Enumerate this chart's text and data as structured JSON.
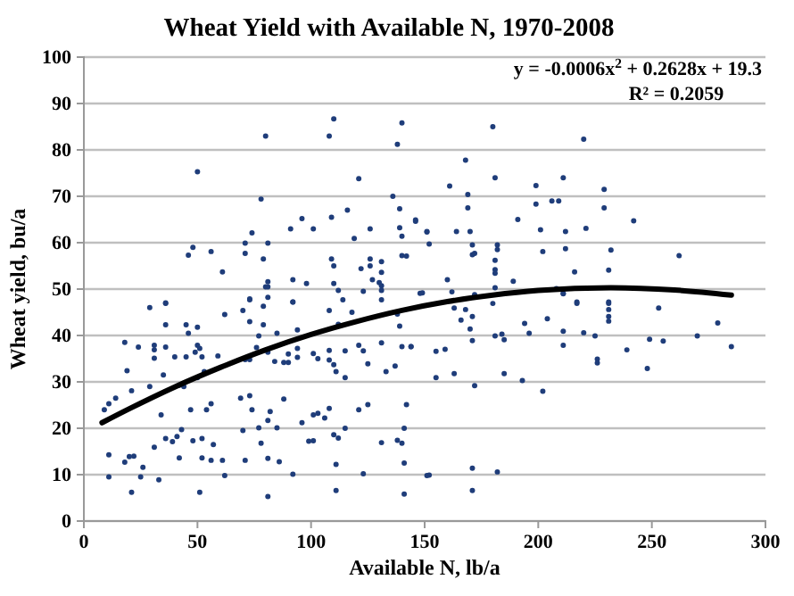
{
  "chart_data": {
    "type": "scatter",
    "title": "Wheat Yield with Available N, 1970-2008",
    "xlabel": "Available N, lb/a",
    "ylabel": "Wheat yield, bu/a",
    "annotations": [
      "y = -0.0006x$^{2}$ + 0.2628x + 19.3",
      "R² = 0.2059"
    ],
    "xlim": [
      0,
      300
    ],
    "xticks": [
      0,
      50,
      100,
      150,
      200,
      250,
      300
    ],
    "ylim": [
      0,
      100
    ],
    "yticks": [
      0,
      10,
      20,
      30,
      40,
      50,
      60,
      70,
      80,
      90,
      100
    ],
    "grid": "y",
    "marker": "circle",
    "series": [
      {
        "color": "#1f3d7a",
        "x": [
          110,
          140,
          80,
          108,
          138,
          50,
          121,
          78,
          136,
          139,
          116,
          96,
          109,
          146,
          74,
          91,
          101,
          126,
          139,
          151,
          140,
          119,
          48,
          71,
          81,
          46,
          56,
          71,
          140,
          142,
          79,
          109,
          126,
          110,
          126,
          131,
          122,
          61,
          131,
          92,
          127,
          81,
          110,
          98,
          130,
          131,
          80,
          81,
          112,
          123,
          148,
          131,
          73,
          81,
          92,
          114,
          131,
          36,
          180,
          220,
          168,
          181,
          199,
          211,
          161,
          169,
          229,
          199,
          206,
          209,
          169,
          229,
          146,
          191,
          242,
          151,
          164,
          170,
          201,
          212,
          221,
          152,
          171,
          182,
          182,
          202,
          212,
          232,
          172,
          171,
          262,
          181,
          181,
          181,
          216,
          231,
          160,
          189,
          181,
          211,
          217,
          231,
          149,
          162,
          172,
          163,
          168,
          166,
          171,
          170,
          171,
          180,
          181,
          184,
          185,
          194,
          196,
          204,
          208,
          211,
          211,
          211,
          217,
          220,
          225,
          226,
          226,
          231,
          231,
          231,
          231,
          253,
          239,
          249,
          255,
          248,
          270,
          279,
          285,
          144,
          155,
          159,
          155,
          163,
          172,
          185,
          193,
          202,
          152,
          171,
          182,
          171,
          29,
          36,
          73,
          79,
          92,
          108,
          118,
          138,
          139,
          62,
          70,
          73,
          79,
          36,
          45,
          50,
          46,
          18,
          24,
          31,
          36,
          31,
          50,
          51,
          49,
          40,
          45,
          31,
          52,
          59,
          71,
          73,
          76,
          81,
          84,
          88,
          94,
          94,
          90,
          90,
          94,
          85,
          77,
          101,
          103,
          108,
          108,
          110,
          111,
          115,
          115,
          112,
          121,
          123,
          125,
          131,
          133,
          140,
          144,
          137,
          53,
          50,
          42,
          44,
          35,
          29,
          21,
          19,
          14,
          9,
          11,
          34,
          47,
          54,
          56,
          69,
          73,
          74,
          70,
          81,
          82,
          77,
          78,
          85,
          88,
          96,
          99,
          101,
          101,
          103,
          106,
          108,
          110,
          112,
          115,
          121,
          125,
          131,
          138,
          140,
          141,
          142,
          141,
          123,
          111,
          81,
          86,
          92,
          71,
          62,
          61,
          56,
          52,
          42,
          36,
          39,
          41,
          43,
          48,
          52,
          57,
          31,
          26,
          25,
          33,
          18,
          20,
          22,
          11,
          11,
          21,
          51,
          81,
          111,
          151,
          141
        ],
        "values": [
          86.7,
          85.8,
          83.0,
          83.0,
          81.2,
          75.3,
          73.8,
          69.4,
          70.0,
          67.3,
          67.0,
          65.2,
          65.5,
          64.6,
          62.1,
          63.0,
          63.0,
          63.0,
          63.2,
          62.3,
          61.4,
          60.9,
          59.0,
          59.9,
          59.9,
          57.3,
          58.1,
          57.7,
          57.2,
          57.1,
          56.5,
          56.5,
          56.5,
          55.0,
          55.0,
          55.9,
          54.4,
          53.7,
          53.6,
          52.0,
          52.0,
          51.6,
          51.2,
          51.2,
          51.4,
          50.7,
          50.5,
          50.5,
          49.7,
          49.5,
          49.1,
          49.7,
          47.7,
          48.2,
          47.2,
          47.7,
          47.7,
          47.0,
          85.0,
          82.3,
          77.8,
          74.0,
          72.3,
          74.0,
          72.2,
          70.4,
          71.5,
          68.3,
          69.0,
          69.0,
          67.5,
          67.5,
          64.9,
          65.0,
          64.7,
          62.4,
          62.4,
          62.4,
          62.8,
          62.4,
          63.1,
          59.7,
          59.5,
          59.5,
          58.5,
          58.1,
          58.7,
          58.4,
          57.7,
          57.4,
          57.2,
          56.2,
          54.2,
          53.4,
          53.7,
          54.1,
          52.0,
          51.7,
          50.3,
          49.0,
          47.2,
          47.2,
          49.2,
          49.4,
          48.8,
          45.9,
          45.6,
          43.3,
          44.1,
          41.4,
          38.9,
          46.9,
          39.9,
          40.3,
          39.1,
          42.6,
          40.5,
          43.6,
          50.1,
          49.1,
          40.9,
          37.9,
          46.9,
          40.6,
          39.9,
          34.9,
          34.1,
          46.9,
          45.6,
          44.1,
          43.1,
          45.9,
          36.9,
          39.2,
          38.8,
          32.9,
          39.9,
          42.7,
          37.6,
          37.6,
          36.6,
          37.0,
          30.9,
          31.8,
          29.2,
          31.8,
          30.3,
          28.0,
          9.9,
          11.4,
          10.6,
          6.6,
          46.0,
          46.9,
          47.9,
          46.3,
          47.2,
          45.4,
          45.0,
          44.6,
          42.0,
          44.5,
          45.4,
          43.0,
          42.3,
          42.3,
          42.3,
          41.8,
          40.5,
          38.5,
          37.5,
          37.9,
          37.5,
          36.9,
          37.9,
          37.2,
          36.4,
          35.4,
          35.4,
          35.1,
          35.4,
          35.6,
          34.8,
          34.8,
          37.4,
          36.4,
          34.4,
          34.2,
          35.3,
          37.2,
          36.0,
          34.2,
          41.2,
          40.5,
          39.9,
          36.1,
          35.0,
          36.8,
          34.7,
          33.7,
          32.2,
          30.9,
          36.7,
          42.4,
          37.9,
          36.7,
          33.9,
          38.4,
          32.2,
          37.6,
          37.6,
          33.4,
          32.2,
          30.9,
          29.3,
          29.0,
          31.5,
          29.0,
          28.1,
          32.4,
          26.5,
          24.0,
          25.3,
          22.9,
          24.0,
          24.0,
          25.3,
          26.5,
          27.0,
          24.0,
          19.5,
          21.7,
          23.6,
          20.1,
          16.8,
          20.1,
          26.3,
          21.2,
          17.2,
          17.3,
          22.9,
          23.2,
          22.2,
          24.3,
          18.6,
          17.9,
          20.0,
          24.0,
          25.1,
          16.9,
          17.4,
          16.8,
          20.0,
          25.1,
          12.5,
          10.2,
          12.2,
          13.5,
          12.8,
          10.1,
          13.1,
          9.8,
          13.1,
          13.1,
          13.6,
          13.6,
          17.8,
          17.1,
          18.2,
          19.7,
          17.3,
          17.8,
          16.5,
          15.9,
          11.6,
          9.5,
          8.9,
          12.7,
          13.9,
          14.0,
          14.3,
          9.5,
          6.2,
          6.2,
          5.3,
          6.6,
          9.8,
          5.8
        ]
      },
      {
        "type": "line",
        "color": "#000000",
        "marker": "none",
        "x": [
          8,
          20,
          40,
          60,
          80,
          100,
          120,
          140,
          160,
          180,
          200,
          232,
          260,
          285
        ],
        "values": [
          21.2,
          24.2,
          28.9,
          33.1,
          36.9,
          40.2,
          43.0,
          45.4,
          47.3,
          48.7,
          49.7,
          50.3,
          49.8,
          48.7
        ]
      }
    ]
  }
}
